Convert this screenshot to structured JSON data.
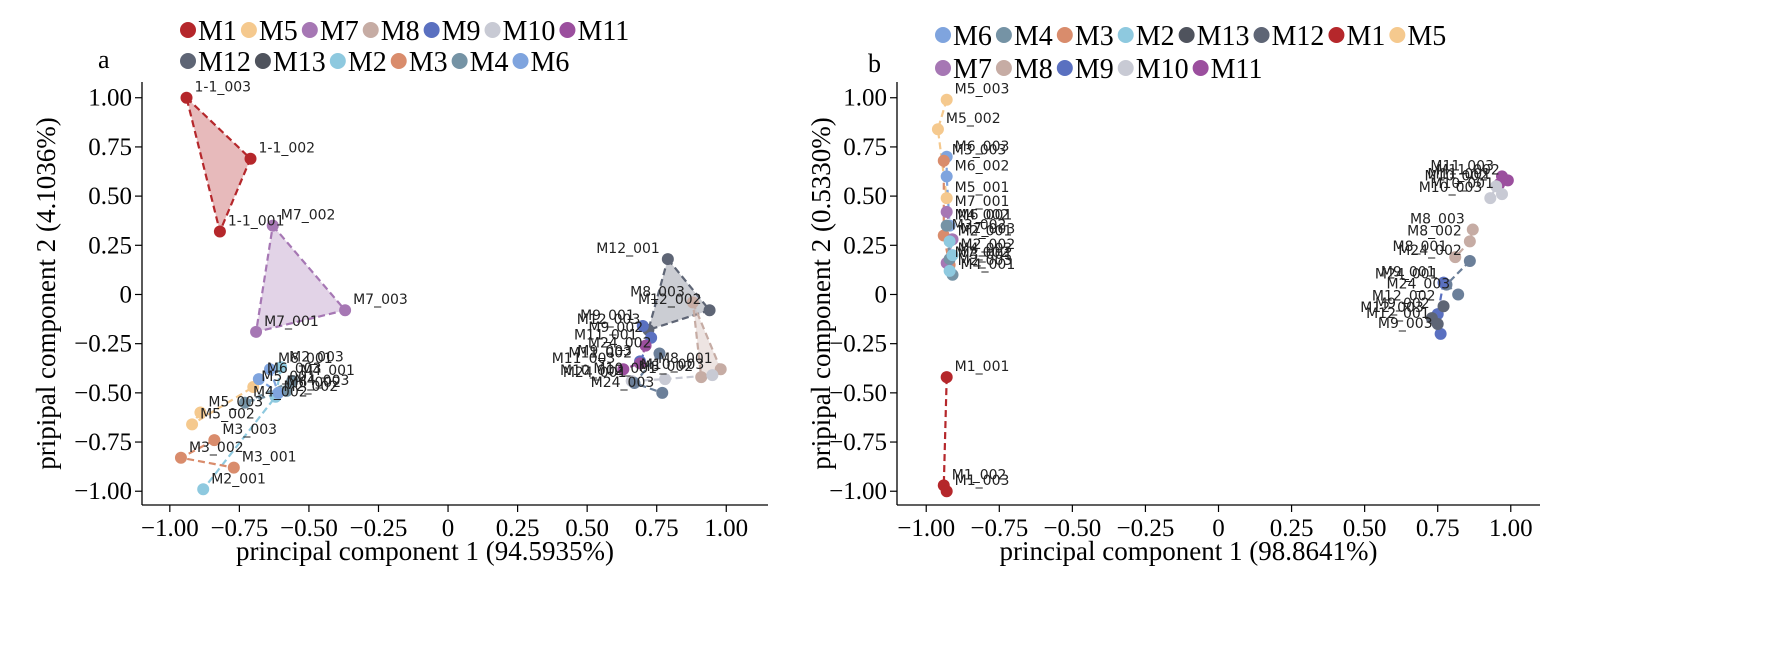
{
  "colors": {
    "M1": "#b5272b",
    "M2": "#8ec9df",
    "M3": "#d98c6c",
    "M4": "#7593a5",
    "M5": "#f5c98e",
    "M6": "#7fa4de",
    "M7": "#a677b4",
    "M8": "#c6aca4",
    "M9": "#5a70c0",
    "M10": "#c8cad4",
    "M11": "#9b4f9e",
    "M12": "#5e6575",
    "M13": "#4f535d"
  },
  "chart_data": [
    {
      "type": "scatter",
      "panel": "a",
      "xlabel": "principal component 1 (94.5935%)",
      "ylabel": "pripipal component 2 (4.1036%)",
      "xlim": [
        -1.1,
        1.15
      ],
      "ylim": [
        -1.07,
        1.08
      ],
      "xticks": [
        "−1.00",
        "−0.75",
        "−0.50",
        "−0.25",
        "0",
        "0.25",
        "0.50",
        "0.75",
        "1.00"
      ],
      "xtick_values": [
        -1.0,
        -0.75,
        -0.5,
        -0.25,
        0,
        0.25,
        0.5,
        0.75,
        1.0
      ],
      "yticks": [
        "1.00",
        "0.75",
        "0.50",
        "0.25",
        "0",
        "−0.25",
        "−0.50",
        "−0.75",
        "−1.00"
      ],
      "ytick_values": [
        1.0,
        0.75,
        0.5,
        0.25,
        0,
        -0.25,
        -0.5,
        -0.75,
        -1.0
      ],
      "legend": [
        [
          "M1",
          "M5",
          "M7",
          "M8",
          "M9",
          "M10",
          "M11"
        ],
        [
          "M12",
          "M13",
          "M2",
          "M3",
          "M4",
          "M6"
        ]
      ],
      "groups": [
        {
          "name": "M1",
          "poly": "fill",
          "points": [
            {
              "label": "1-1_003",
              "x": -0.94,
              "y": 1.0
            },
            {
              "label": "1-1_002",
              "x": -0.71,
              "y": 0.69
            },
            {
              "label": "1-1_001",
              "x": -0.82,
              "y": 0.32
            }
          ]
        },
        {
          "name": "M7",
          "poly": "fill",
          "points": [
            {
              "label": "M7_002",
              "x": -0.63,
              "y": 0.35
            },
            {
              "label": "M7_003",
              "x": -0.37,
              "y": -0.08
            },
            {
              "label": "M7_001",
              "x": -0.69,
              "y": -0.19
            }
          ]
        },
        {
          "name": "M2",
          "poly": "line",
          "points": [
            {
              "label": "M2_003",
              "x": -0.6,
              "y": -0.37
            },
            {
              "label": "M2_002",
              "x": -0.62,
              "y": -0.52
            },
            {
              "label": "M2_001",
              "x": -0.88,
              "y": -0.99
            }
          ]
        },
        {
          "name": "M3",
          "poly": "line",
          "points": [
            {
              "label": "M3_003",
              "x": -0.84,
              "y": -0.74
            },
            {
              "label": "M3_002",
              "x": -0.96,
              "y": -0.83
            },
            {
              "label": "M3_001",
              "x": -0.77,
              "y": -0.88
            }
          ]
        },
        {
          "name": "M5",
          "poly": "line",
          "points": [
            {
              "label": "M5_003",
              "x": -0.89,
              "y": -0.6
            },
            {
              "label": "M5_002",
              "x": -0.92,
              "y": -0.66
            },
            {
              "label": "M5_001",
              "x": -0.7,
              "y": -0.47
            }
          ]
        },
        {
          "name": "M4",
          "poly": "line",
          "points": [
            {
              "label": "M4_001",
              "x": -0.56,
              "y": -0.44
            },
            {
              "label": "M4_002",
              "x": -0.73,
              "y": -0.55
            },
            {
              "label": "M4_003",
              "x": -0.58,
              "y": -0.49
            }
          ]
        },
        {
          "name": "M6",
          "poly": "line",
          "points": [
            {
              "label": "M6_001",
              "x": -0.64,
              "y": -0.38
            },
            {
              "label": "M6_002",
              "x": -0.61,
              "y": -0.5
            },
            {
              "label": "M6_003",
              "x": -0.68,
              "y": -0.43
            }
          ]
        },
        {
          "name": "M12",
          "poly": "fill",
          "points": [
            {
              "label": "M12_001",
              "x": 0.79,
              "y": 0.18
            },
            {
              "label": "M12_002",
              "x": 0.94,
              "y": -0.08
            },
            {
              "label": "M12_003",
              "x": 0.72,
              "y": -0.18
            }
          ]
        },
        {
          "name": "M8",
          "poly": "fill",
          "points": [
            {
              "label": "M8_003",
              "x": 0.88,
              "y": -0.04
            },
            {
              "label": "M8_001",
              "x": 0.98,
              "y": -0.38
            },
            {
              "label": "M8_002",
              "x": 0.91,
              "y": -0.42
            }
          ]
        },
        {
          "name": "M9",
          "poly": "line",
          "points": [
            {
              "label": "M9_001",
              "x": 0.7,
              "y": -0.16
            },
            {
              "label": "M9_002",
              "x": 0.73,
              "y": -0.22
            },
            {
              "label": "M9_003",
              "x": 0.69,
              "y": -0.34
            }
          ]
        },
        {
          "name": "M11",
          "poly": "line",
          "points": [
            {
              "label": "M11_001",
              "x": 0.71,
              "y": -0.26
            },
            {
              "label": "M11_002",
              "x": 0.69,
              "y": -0.35
            },
            {
              "label": "M11_003",
              "x": 0.63,
              "y": -0.38
            }
          ]
        },
        {
          "name": "M10",
          "poly": "line",
          "points": [
            {
              "label": "M10_002",
              "x": 0.66,
              "y": -0.44
            },
            {
              "label": "M10_001",
              "x": 0.78,
              "y": -0.43
            },
            {
              "label": "M10_003",
              "x": 0.95,
              "y": -0.41
            }
          ]
        },
        {
          "name": "M24",
          "poly": "line",
          "points": [
            {
              "label": "M24_002",
              "x": 0.76,
              "y": -0.3
            },
            {
              "label": "M24_001",
              "x": 0.67,
              "y": -0.45
            },
            {
              "label": "M24_003",
              "x": 0.77,
              "y": -0.5
            }
          ]
        }
      ]
    },
    {
      "type": "scatter",
      "panel": "b",
      "xlabel": "principal component 1 (98.8641%)",
      "ylabel": "pripipal component 2 (0.5330%)",
      "xlim": [
        -1.1,
        1.1
      ],
      "ylim": [
        -1.07,
        1.08
      ],
      "xticks": [
        "−1.00",
        "−0.75",
        "−0.50",
        "−0.25",
        "0",
        "0.25",
        "0.50",
        "0.75",
        "1.00"
      ],
      "xtick_values": [
        -1.0,
        -0.75,
        -0.5,
        -0.25,
        0,
        0.25,
        0.5,
        0.75,
        1.0
      ],
      "yticks": [
        "1.00",
        "0.75",
        "0.50",
        "0.25",
        "0",
        "−0.25",
        "−0.50",
        "−0.75",
        "−1.00"
      ],
      "ytick_values": [
        1.0,
        0.75,
        0.5,
        0.25,
        0,
        -0.25,
        -0.5,
        -0.75,
        -1.0
      ],
      "legend": [
        [
          "M6",
          "M4",
          "M3",
          "M2",
          "M13",
          "M12",
          "M1",
          "M5"
        ],
        [
          "M7",
          "M8",
          "M9",
          "M10",
          "M11"
        ]
      ],
      "groups": [
        {
          "name": "M1",
          "poly": "line",
          "points": [
            {
              "label": "M1_001",
              "x": -0.93,
              "y": -0.42
            },
            {
              "label": "M1_002",
              "x": -0.94,
              "y": -0.97
            },
            {
              "label": "M1_003",
              "x": -0.93,
              "y": -1.0
            }
          ]
        },
        {
          "name": "M5",
          "poly": "line",
          "points": [
            {
              "label": "M5_003",
              "x": -0.93,
              "y": 0.99
            },
            {
              "label": "M5_002",
              "x": -0.96,
              "y": 0.84
            },
            {
              "label": "M5_001",
              "x": -0.93,
              "y": 0.49
            }
          ]
        },
        {
          "name": "M6",
          "poly": "line",
          "points": [
            {
              "label": "M6_003",
              "x": -0.93,
              "y": 0.7
            },
            {
              "label": "M6_002",
              "x": -0.93,
              "y": 0.6
            },
            {
              "label": "M6_001",
              "x": -0.92,
              "y": 0.35
            }
          ]
        },
        {
          "name": "M3",
          "poly": "line",
          "points": [
            {
              "label": "M3_003",
              "x": -0.94,
              "y": 0.68
            },
            {
              "label": "M3_002",
              "x": -0.94,
              "y": 0.3
            },
            {
              "label": "M3_001",
              "x": -0.92,
              "y": 0.15
            }
          ]
        },
        {
          "name": "M7",
          "poly": "line",
          "points": [
            {
              "label": "M7_001",
              "x": -0.93,
              "y": 0.42
            },
            {
              "label": "M7_003",
              "x": -0.91,
              "y": 0.28
            },
            {
              "label": "M7_002",
              "x": -0.93,
              "y": 0.16
            }
          ]
        },
        {
          "name": "M4",
          "poly": "line",
          "points": [
            {
              "label": "M4_002",
              "x": -0.93,
              "y": 0.35
            },
            {
              "label": "M4_003",
              "x": -0.92,
              "y": 0.18
            },
            {
              "label": "M4_001",
              "x": -0.91,
              "y": 0.1
            }
          ]
        },
        {
          "name": "M2",
          "poly": "line",
          "points": [
            {
              "label": "M2_001",
              "x": -0.92,
              "y": 0.27
            },
            {
              "label": "M2_002",
              "x": -0.91,
              "y": 0.2
            },
            {
              "label": "M2_003",
              "x": -0.92,
              "y": 0.12
            }
          ]
        },
        {
          "name": "M11",
          "poly": "line",
          "points": [
            {
              "label": "M11_002",
              "x": 0.99,
              "y": 0.58
            },
            {
              "label": "M11_003",
              "x": 0.97,
              "y": 0.6
            },
            {
              "label": "M11_001",
              "x": 0.96,
              "y": 0.56
            }
          ]
        },
        {
          "name": "M10",
          "poly": "line",
          "points": [
            {
              "label": "M10_001",
              "x": 0.97,
              "y": 0.51
            },
            {
              "label": "M10_002",
              "x": 0.95,
              "y": 0.55
            },
            {
              "label": "M10_003",
              "x": 0.93,
              "y": 0.49
            }
          ]
        },
        {
          "name": "M8",
          "poly": "line",
          "points": [
            {
              "label": "M8_003",
              "x": 0.87,
              "y": 0.33
            },
            {
              "label": "M8_002",
              "x": 0.86,
              "y": 0.27
            },
            {
              "label": "M8_001",
              "x": 0.81,
              "y": 0.19
            }
          ]
        },
        {
          "name": "M24",
          "poly": "line",
          "points": [
            {
              "label": "M24_002",
              "x": 0.86,
              "y": 0.17
            },
            {
              "label": "M24_001",
              "x": 0.78,
              "y": 0.05
            },
            {
              "label": "M24_003",
              "x": 0.82,
              "y": 0.0
            }
          ]
        },
        {
          "name": "M9",
          "poly": "line",
          "points": [
            {
              "label": "M9_001",
              "x": 0.77,
              "y": 0.06
            },
            {
              "label": "M9_002",
              "x": 0.75,
              "y": -0.1
            },
            {
              "label": "M9_003",
              "x": 0.76,
              "y": -0.2
            }
          ]
        },
        {
          "name": "M12",
          "poly": "line",
          "points": [
            {
              "label": "M12_002",
              "x": 0.77,
              "y": -0.06
            },
            {
              "label": "M12_003",
              "x": 0.73,
              "y": -0.12
            },
            {
              "label": "M12_001",
              "x": 0.75,
              "y": -0.15
            }
          ]
        }
      ]
    }
  ]
}
